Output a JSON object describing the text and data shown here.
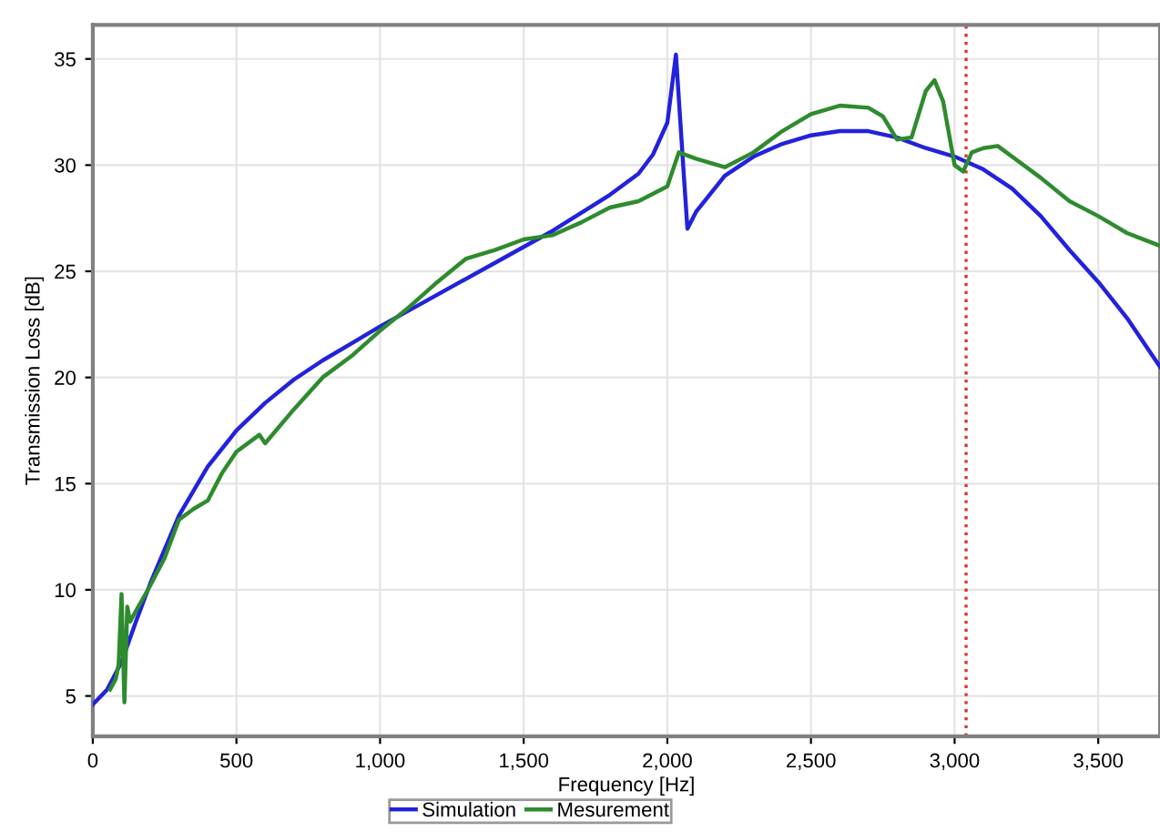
{
  "chart_data": {
    "type": "line",
    "xlabel": "Frequency [Hz]",
    "ylabel": "Transmission Loss [dB]",
    "xlim": [
      0,
      3715
    ],
    "ylim": [
      3.1,
      36.6
    ],
    "xticks": [
      {
        "value": 0,
        "label": "0"
      },
      {
        "value": 500,
        "label": "500"
      },
      {
        "value": 1000,
        "label": "1,000"
      },
      {
        "value": 1500,
        "label": "1,500"
      },
      {
        "value": 2000,
        "label": "2,000"
      },
      {
        "value": 2500,
        "label": "2,500"
      },
      {
        "value": 3000,
        "label": "3,000"
      },
      {
        "value": 3500,
        "label": "3,500"
      }
    ],
    "yticks": [
      5,
      10,
      15,
      20,
      25,
      30,
      35
    ],
    "grid": true,
    "legend": "bottom",
    "marker": "none",
    "ref_lines": [
      {
        "axis": "x",
        "value": 3040,
        "color": "#e03030",
        "line_style": "dotted"
      }
    ],
    "series": [
      {
        "name": "Simulation",
        "color": "#2222dd",
        "x": [
          0,
          50,
          100,
          150,
          200,
          300,
          400,
          500,
          600,
          700,
          800,
          900,
          1000,
          1200,
          1400,
          1600,
          1800,
          1900,
          1950,
          2000,
          2030,
          2060,
          2070,
          2100,
          2200,
          2300,
          2400,
          2500,
          2600,
          2700,
          2800,
          2900,
          3000,
          3100,
          3200,
          3300,
          3400,
          3500,
          3600,
          3715
        ],
        "values": [
          4.6,
          5.3,
          6.6,
          8.5,
          10.3,
          13.5,
          15.8,
          17.5,
          18.8,
          19.9,
          20.8,
          21.6,
          22.4,
          23.9,
          25.4,
          26.9,
          28.6,
          29.6,
          30.5,
          32.0,
          35.2,
          29.0,
          27.0,
          27.8,
          29.5,
          30.4,
          31.0,
          31.4,
          31.6,
          31.6,
          31.3,
          30.8,
          30.4,
          29.8,
          28.9,
          27.6,
          26.0,
          24.5,
          22.8,
          20.5
        ]
      },
      {
        "name": "Mesurement",
        "color": "#2e8b2e",
        "line_style": "solid",
        "x": [
          60,
          80,
          90,
          100,
          110,
          120,
          130,
          150,
          200,
          250,
          300,
          350,
          400,
          450,
          500,
          580,
          600,
          700,
          800,
          900,
          1000,
          1100,
          1200,
          1300,
          1400,
          1500,
          1600,
          1700,
          1800,
          1900,
          2000,
          2040,
          2100,
          2200,
          2300,
          2400,
          2500,
          2600,
          2700,
          2750,
          2800,
          2850,
          2900,
          2930,
          2960,
          3000,
          3030,
          3060,
          3100,
          3150,
          3200,
          3300,
          3400,
          3500,
          3600,
          3715
        ],
        "values": [
          5.3,
          5.8,
          6.5,
          9.8,
          4.7,
          9.2,
          8.5,
          9.0,
          10.2,
          11.5,
          13.3,
          13.8,
          14.2,
          15.5,
          16.5,
          17.3,
          16.9,
          18.5,
          20.0,
          21.0,
          22.2,
          23.3,
          24.5,
          25.6,
          26.0,
          26.5,
          26.7,
          27.3,
          28.0,
          28.3,
          29.0,
          30.6,
          30.3,
          29.9,
          30.6,
          31.6,
          32.4,
          32.8,
          32.7,
          32.3,
          31.2,
          31.3,
          33.5,
          34.0,
          33.0,
          30.0,
          29.7,
          30.6,
          30.8,
          30.9,
          30.4,
          29.4,
          28.3,
          27.6,
          26.8,
          26.2
        ]
      }
    ]
  }
}
